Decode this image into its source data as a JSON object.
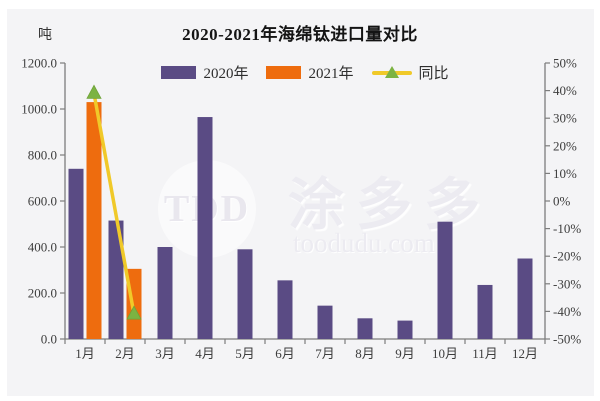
{
  "title": "2020-2021年海绵钛进口量对比",
  "unit_label": "吨",
  "watermark": {
    "logo": "TDD",
    "brand": "涂多多",
    "domain": "toodudu.com"
  },
  "legend": [
    {
      "label": "2020年",
      "color": "#5a4b84",
      "type": "bar"
    },
    {
      "label": "2021年",
      "color": "#ee6c0e",
      "type": "bar"
    },
    {
      "label": "同比",
      "color": "#f0c929",
      "marker_color": "#7cb342",
      "type": "line"
    }
  ],
  "chart_data": {
    "type": "bar",
    "title": "2020-2021年海绵钛进口量对比",
    "categories": [
      "1月",
      "2月",
      "3月",
      "4月",
      "5月",
      "6月",
      "7月",
      "8月",
      "9月",
      "10月",
      "11月",
      "12月"
    ],
    "series": [
      {
        "name": "2020年",
        "type": "bar",
        "axis": "left",
        "color": "#5a4b84",
        "values": [
          740,
          515,
          400,
          965,
          390,
          255,
          145,
          90,
          80,
          510,
          235,
          350
        ]
      },
      {
        "name": "2021年",
        "type": "bar",
        "axis": "left",
        "color": "#ee6c0e",
        "values": [
          1030,
          305,
          null,
          null,
          null,
          null,
          null,
          null,
          null,
          null,
          null,
          null
        ]
      },
      {
        "name": "同比",
        "type": "line",
        "axis": "right",
        "color": "#f0c929",
        "marker": "triangle",
        "marker_color": "#7cb342",
        "values_pct": [
          39,
          -41,
          null,
          null,
          null,
          null,
          null,
          null,
          null,
          null,
          null,
          null
        ]
      }
    ],
    "left_axis": {
      "label": "吨",
      "min": 0,
      "max": 1200,
      "step": 200,
      "tick_format": "one_decimal"
    },
    "right_axis": {
      "min": -50,
      "max": 50,
      "step": 10,
      "tick_format": "percent"
    },
    "grid": false,
    "legend_position": "top"
  }
}
